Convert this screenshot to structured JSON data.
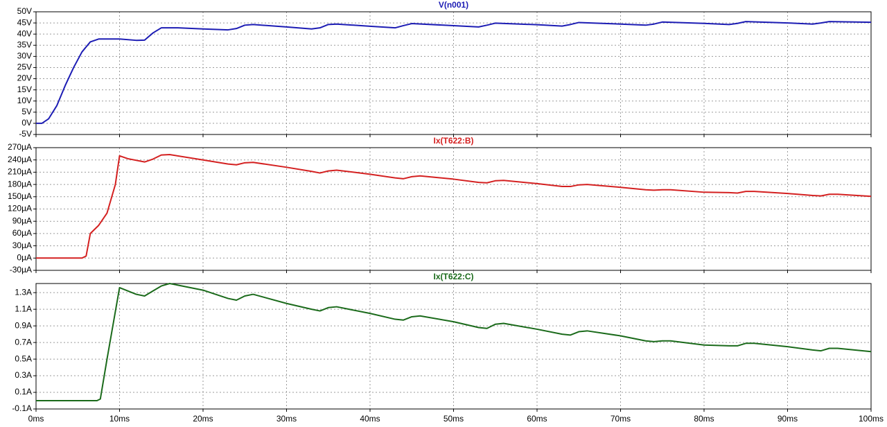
{
  "chart_data": [
    {
      "type": "line",
      "x": [
        0,
        0.7,
        1.5,
        2.5,
        3.5,
        4.5,
        5.5,
        6.5,
        7.5,
        10,
        12,
        13,
        14,
        15,
        17,
        20,
        23,
        24,
        25,
        26,
        30,
        33,
        34,
        35,
        36,
        40,
        43,
        44,
        45,
        50,
        53,
        54,
        55,
        60,
        63,
        64,
        65,
        70,
        73,
        74,
        75,
        80,
        83,
        84,
        85,
        90,
        93,
        94,
        95,
        100
      ],
      "series": [
        {
          "name": "V(n001)",
          "color": "#1c1cb4",
          "values": [
            0,
            0,
            2,
            8,
            17,
            25,
            32,
            36.5,
            37.8,
            37.8,
            37.2,
            37.3,
            40.5,
            42.8,
            42.8,
            42.3,
            41.9,
            42.5,
            44,
            44.3,
            43.2,
            42.3,
            42.8,
            44.3,
            44.5,
            43.5,
            42.8,
            43.8,
            44.7,
            43.8,
            43.2,
            44,
            44.9,
            44.2,
            43.6,
            44.3,
            45.2,
            44.5,
            44,
            44.5,
            45.4,
            44.8,
            44.3,
            44.8,
            45.6,
            45,
            44.5,
            45,
            45.6,
            45.3
          ]
        }
      ],
      "xlim": [
        0,
        100
      ],
      "xticks": [
        0,
        10,
        20,
        30,
        40,
        50,
        60,
        70,
        80,
        90,
        100
      ],
      "ylim": [
        -5,
        50
      ],
      "yticks": [
        {
          "value": -5,
          "label": "-5V"
        },
        {
          "value": 0,
          "label": "0V"
        },
        {
          "value": 5,
          "label": "5V"
        },
        {
          "value": 10,
          "label": "10V"
        },
        {
          "value": 15,
          "label": "15V"
        },
        {
          "value": 20,
          "label": "20V"
        },
        {
          "value": 25,
          "label": "25V"
        },
        {
          "value": 30,
          "label": "30V"
        },
        {
          "value": 35,
          "label": "35V"
        },
        {
          "value": 40,
          "label": "40V"
        },
        {
          "value": 45,
          "label": "45V"
        },
        {
          "value": 50,
          "label": "50V"
        }
      ],
      "grid": true
    },
    {
      "type": "line",
      "x": [
        0,
        5.5,
        6,
        6.5,
        7.5,
        8.5,
        9.5,
        10,
        11,
        13,
        14,
        15,
        16,
        20,
        23,
        24,
        25,
        26,
        30,
        33,
        34,
        35,
        36,
        40,
        43,
        44,
        45,
        46,
        50,
        53,
        54,
        55,
        56,
        60,
        63,
        64,
        65,
        66,
        70,
        73,
        74,
        75,
        76,
        80,
        83,
        84,
        85,
        86,
        90,
        93,
        94,
        95,
        96,
        100
      ],
      "series": [
        {
          "name": "Ix(T622:B)",
          "color": "#d42020",
          "values": [
            0,
            0,
            5,
            60,
            80,
            110,
            180,
            250,
            243,
            235,
            242,
            252,
            253,
            240,
            230,
            228,
            233,
            234,
            222,
            212,
            208,
            213,
            215,
            205,
            196,
            194,
            199,
            201,
            193,
            185,
            184,
            189,
            190,
            182,
            175,
            175,
            179,
            180,
            173,
            167,
            166,
            167,
            167,
            161,
            160,
            159,
            163,
            163,
            158,
            153,
            152,
            156,
            156,
            151
          ]
        }
      ],
      "xlim": [
        0,
        100
      ],
      "xticks": [
        0,
        10,
        20,
        30,
        40,
        50,
        60,
        70,
        80,
        90,
        100
      ],
      "ylim": [
        -30,
        270
      ],
      "yticks": [
        {
          "value": -30,
          "label": "-30µA"
        },
        {
          "value": 0,
          "label": "0µA"
        },
        {
          "value": 30,
          "label": "30µA"
        },
        {
          "value": 60,
          "label": "60µA"
        },
        {
          "value": 90,
          "label": "90µA"
        },
        {
          "value": 120,
          "label": "120µA"
        },
        {
          "value": 150,
          "label": "150µA"
        },
        {
          "value": 180,
          "label": "180µA"
        },
        {
          "value": 210,
          "label": "210µA"
        },
        {
          "value": 240,
          "label": "240µA"
        },
        {
          "value": 270,
          "label": "270µA"
        }
      ],
      "grid": true
    },
    {
      "type": "line",
      "x": [
        0,
        7.3,
        7.7,
        8.5,
        10,
        12,
        13,
        14,
        15,
        16,
        20,
        23,
        24,
        25,
        26,
        30,
        33,
        34,
        35,
        36,
        40,
        43,
        44,
        45,
        46,
        50,
        53,
        54,
        55,
        56,
        60,
        63,
        64,
        65,
        66,
        70,
        73,
        74,
        75,
        76,
        80,
        83,
        84,
        85,
        86,
        90,
        93,
        94,
        95,
        96,
        100
      ],
      "series": [
        {
          "name": "Ix(T622:C)",
          "color": "#1a6a1a",
          "values": [
            0,
            0,
            0.02,
            0.5,
            1.36,
            1.28,
            1.26,
            1.32,
            1.38,
            1.41,
            1.33,
            1.23,
            1.21,
            1.26,
            1.28,
            1.17,
            1.1,
            1.08,
            1.12,
            1.13,
            1.05,
            0.98,
            0.97,
            1.01,
            1.02,
            0.95,
            0.88,
            0.87,
            0.92,
            0.93,
            0.86,
            0.8,
            0.79,
            0.83,
            0.84,
            0.78,
            0.72,
            0.71,
            0.72,
            0.72,
            0.67,
            0.66,
            0.66,
            0.69,
            0.69,
            0.65,
            0.61,
            0.6,
            0.63,
            0.63,
            0.59
          ]
        }
      ],
      "xlim": [
        0,
        100
      ],
      "xticks": [
        {
          "value": 0,
          "label": "0ms"
        },
        {
          "value": 10,
          "label": "10ms"
        },
        {
          "value": 20,
          "label": "20ms"
        },
        {
          "value": 30,
          "label": "30ms"
        },
        {
          "value": 40,
          "label": "40ms"
        },
        {
          "value": 50,
          "label": "50ms"
        },
        {
          "value": 60,
          "label": "60ms"
        },
        {
          "value": 70,
          "label": "70ms"
        },
        {
          "value": 80,
          "label": "80ms"
        },
        {
          "value": 90,
          "label": "90ms"
        },
        {
          "value": 100,
          "label": "100ms"
        }
      ],
      "ylim": [
        -0.1,
        1.41
      ],
      "yticks": [
        {
          "value": -0.1,
          "label": "-0.1A"
        },
        {
          "value": 0.1,
          "label": "0.1A"
        },
        {
          "value": 0.3,
          "label": "0.3A"
        },
        {
          "value": 0.5,
          "label": "0.5A"
        },
        {
          "value": 0.7,
          "label": "0.7A"
        },
        {
          "value": 0.9,
          "label": "0.9A"
        },
        {
          "value": 1.1,
          "label": "1.1A"
        },
        {
          "value": 1.3,
          "label": "1.3A"
        }
      ],
      "grid": true
    }
  ]
}
